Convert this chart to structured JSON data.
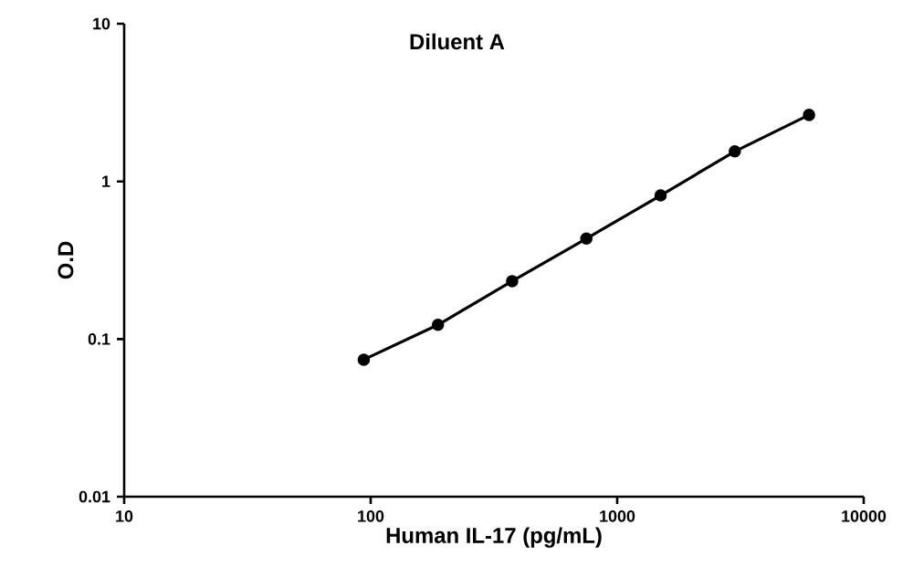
{
  "chart_data": {
    "type": "line",
    "title": "Diluent A",
    "xlabel": "Human IL-17 (pg/mL)",
    "ylabel": "O.D",
    "x": [
      93.75,
      187.5,
      375,
      750,
      1500,
      3000,
      6000
    ],
    "series": [
      {
        "color": "#000000",
        "values": [
          0.074,
          0.123,
          0.233,
          0.434,
          0.815,
          1.55,
          2.64
        ]
      }
    ],
    "log": "xy",
    "xlim": [
      10,
      10000
    ],
    "ylim": [
      0.01,
      10
    ],
    "xticks": [
      10,
      100,
      1000,
      10000
    ],
    "yticks": [
      0.01,
      0.1,
      1,
      10
    ],
    "marker": "circle",
    "line_style": "solid"
  }
}
